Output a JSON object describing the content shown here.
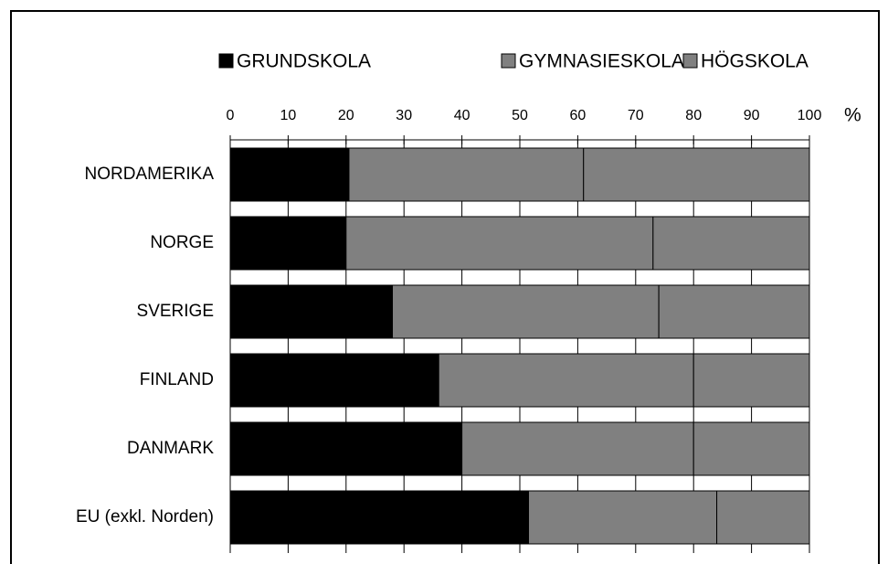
{
  "chart_data": {
    "type": "stacked_barh",
    "categories": [
      "NORDAMERIKA",
      "NORGE",
      "SVERIGE",
      "FINLAND",
      "DANMARK",
      "EU (exkl. Norden)"
    ],
    "series": [
      {
        "name": "GRUNDSKOLA",
        "color": "#000000",
        "values": [
          20.5,
          20,
          28,
          36,
          40,
          51.5
        ]
      },
      {
        "name": "GYMNASIESKOLA",
        "color": "#808080",
        "values": [
          40.5,
          53,
          46,
          44,
          40,
          32.5
        ]
      },
      {
        "name": "HÖGSKOLA",
        "color": "#808080",
        "values": [
          39,
          27,
          26,
          20,
          20,
          16
        ]
      }
    ],
    "xlabel": "%",
    "xlim": [
      0,
      100
    ],
    "xticks": [
      0,
      10,
      20,
      30,
      40,
      50,
      60,
      70,
      80,
      90,
      100
    ],
    "grid": true,
    "legend": "top"
  }
}
